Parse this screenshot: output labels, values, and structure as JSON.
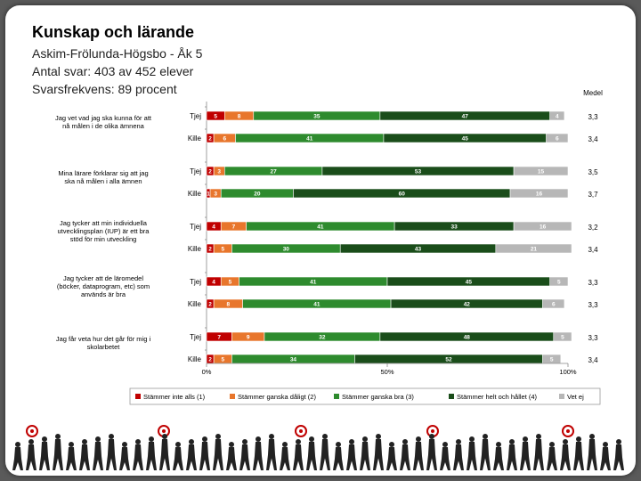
{
  "slide": {
    "title": "Kunskap och lärande",
    "subtitles": [
      "Askim-Frölunda-Högsbo - Åk 5",
      "Antal svar: 403 av 452 elever",
      "Svarsfrekvens: 89 procent"
    ]
  },
  "chart_data": {
    "type": "bar",
    "orientation": "horizontal",
    "stacked": true,
    "percent_scale": true,
    "xlim": [
      0,
      100
    ],
    "x_ticks": [
      "0%",
      "50%",
      "100%"
    ],
    "side_column_title": "Medel",
    "series": [
      {
        "name": "Stämmer inte alls (1)",
        "color": "#c00000"
      },
      {
        "name": "Stämmer ganska dåligt (2)",
        "color": "#e8762c"
      },
      {
        "name": "Stämmer ganska bra (3)",
        "color": "#2e8b2e"
      },
      {
        "name": "Stämmer helt och hållet (4)",
        "color": "#1a4d1a"
      },
      {
        "name": "Vet ej",
        "color": "#b7b7b7"
      }
    ],
    "groups": [
      {
        "question": [
          "Jag vet vad jag ska kunna för att",
          "nå målen i de olika ämnena"
        ],
        "rows": [
          {
            "label": "Tjej",
            "values": [
              5,
              8,
              35,
              47,
              4
            ],
            "mean": "3,3"
          },
          {
            "label": "Kille",
            "values": [
              2,
              6,
              41,
              45,
              6
            ],
            "mean": "3,4"
          }
        ]
      },
      {
        "question": [
          "Mina lärare förklarar sig att jag",
          "ska nå målen i alla ämnen"
        ],
        "rows": [
          {
            "label": "Tjej",
            "values": [
              2,
              3,
              27,
              53,
              15
            ],
            "mean": "3,5"
          },
          {
            "label": "Kille",
            "values": [
              1,
              3,
              20,
              60,
              16
            ],
            "mean": "3,7"
          }
        ]
      },
      {
        "question": [
          "Jag tycker att min individuella",
          "utvecklingsplan (IUP) är ett bra",
          "stöd för min utveckling"
        ],
        "rows": [
          {
            "label": "Tjej",
            "values": [
              4,
              7,
              41,
              33,
              16
            ],
            "mean": "3,2"
          },
          {
            "label": "Kille",
            "values": [
              2,
              5,
              30,
              43,
              21
            ],
            "mean": "3,4"
          }
        ]
      },
      {
        "question": [
          "Jag tycker att de läromedel",
          "(böcker, dataprogram, etc) som",
          "används är bra"
        ],
        "rows": [
          {
            "label": "Tjej",
            "values": [
              4,
              5,
              41,
              45,
              5
            ],
            "mean": "3,3"
          },
          {
            "label": "Kille",
            "values": [
              2,
              8,
              41,
              42,
              6
            ],
            "mean": "3,3"
          }
        ]
      },
      {
        "question": [
          "Jag får veta hur det går för mig i",
          "skolarbetet"
        ],
        "rows": [
          {
            "label": "Tjej",
            "values": [
              7,
              9,
              32,
              48,
              5
            ],
            "mean": "3,3"
          },
          {
            "label": "Kille",
            "values": [
              2,
              5,
              34,
              52,
              5
            ],
            "mean": "3,4"
          }
        ]
      }
    ]
  }
}
